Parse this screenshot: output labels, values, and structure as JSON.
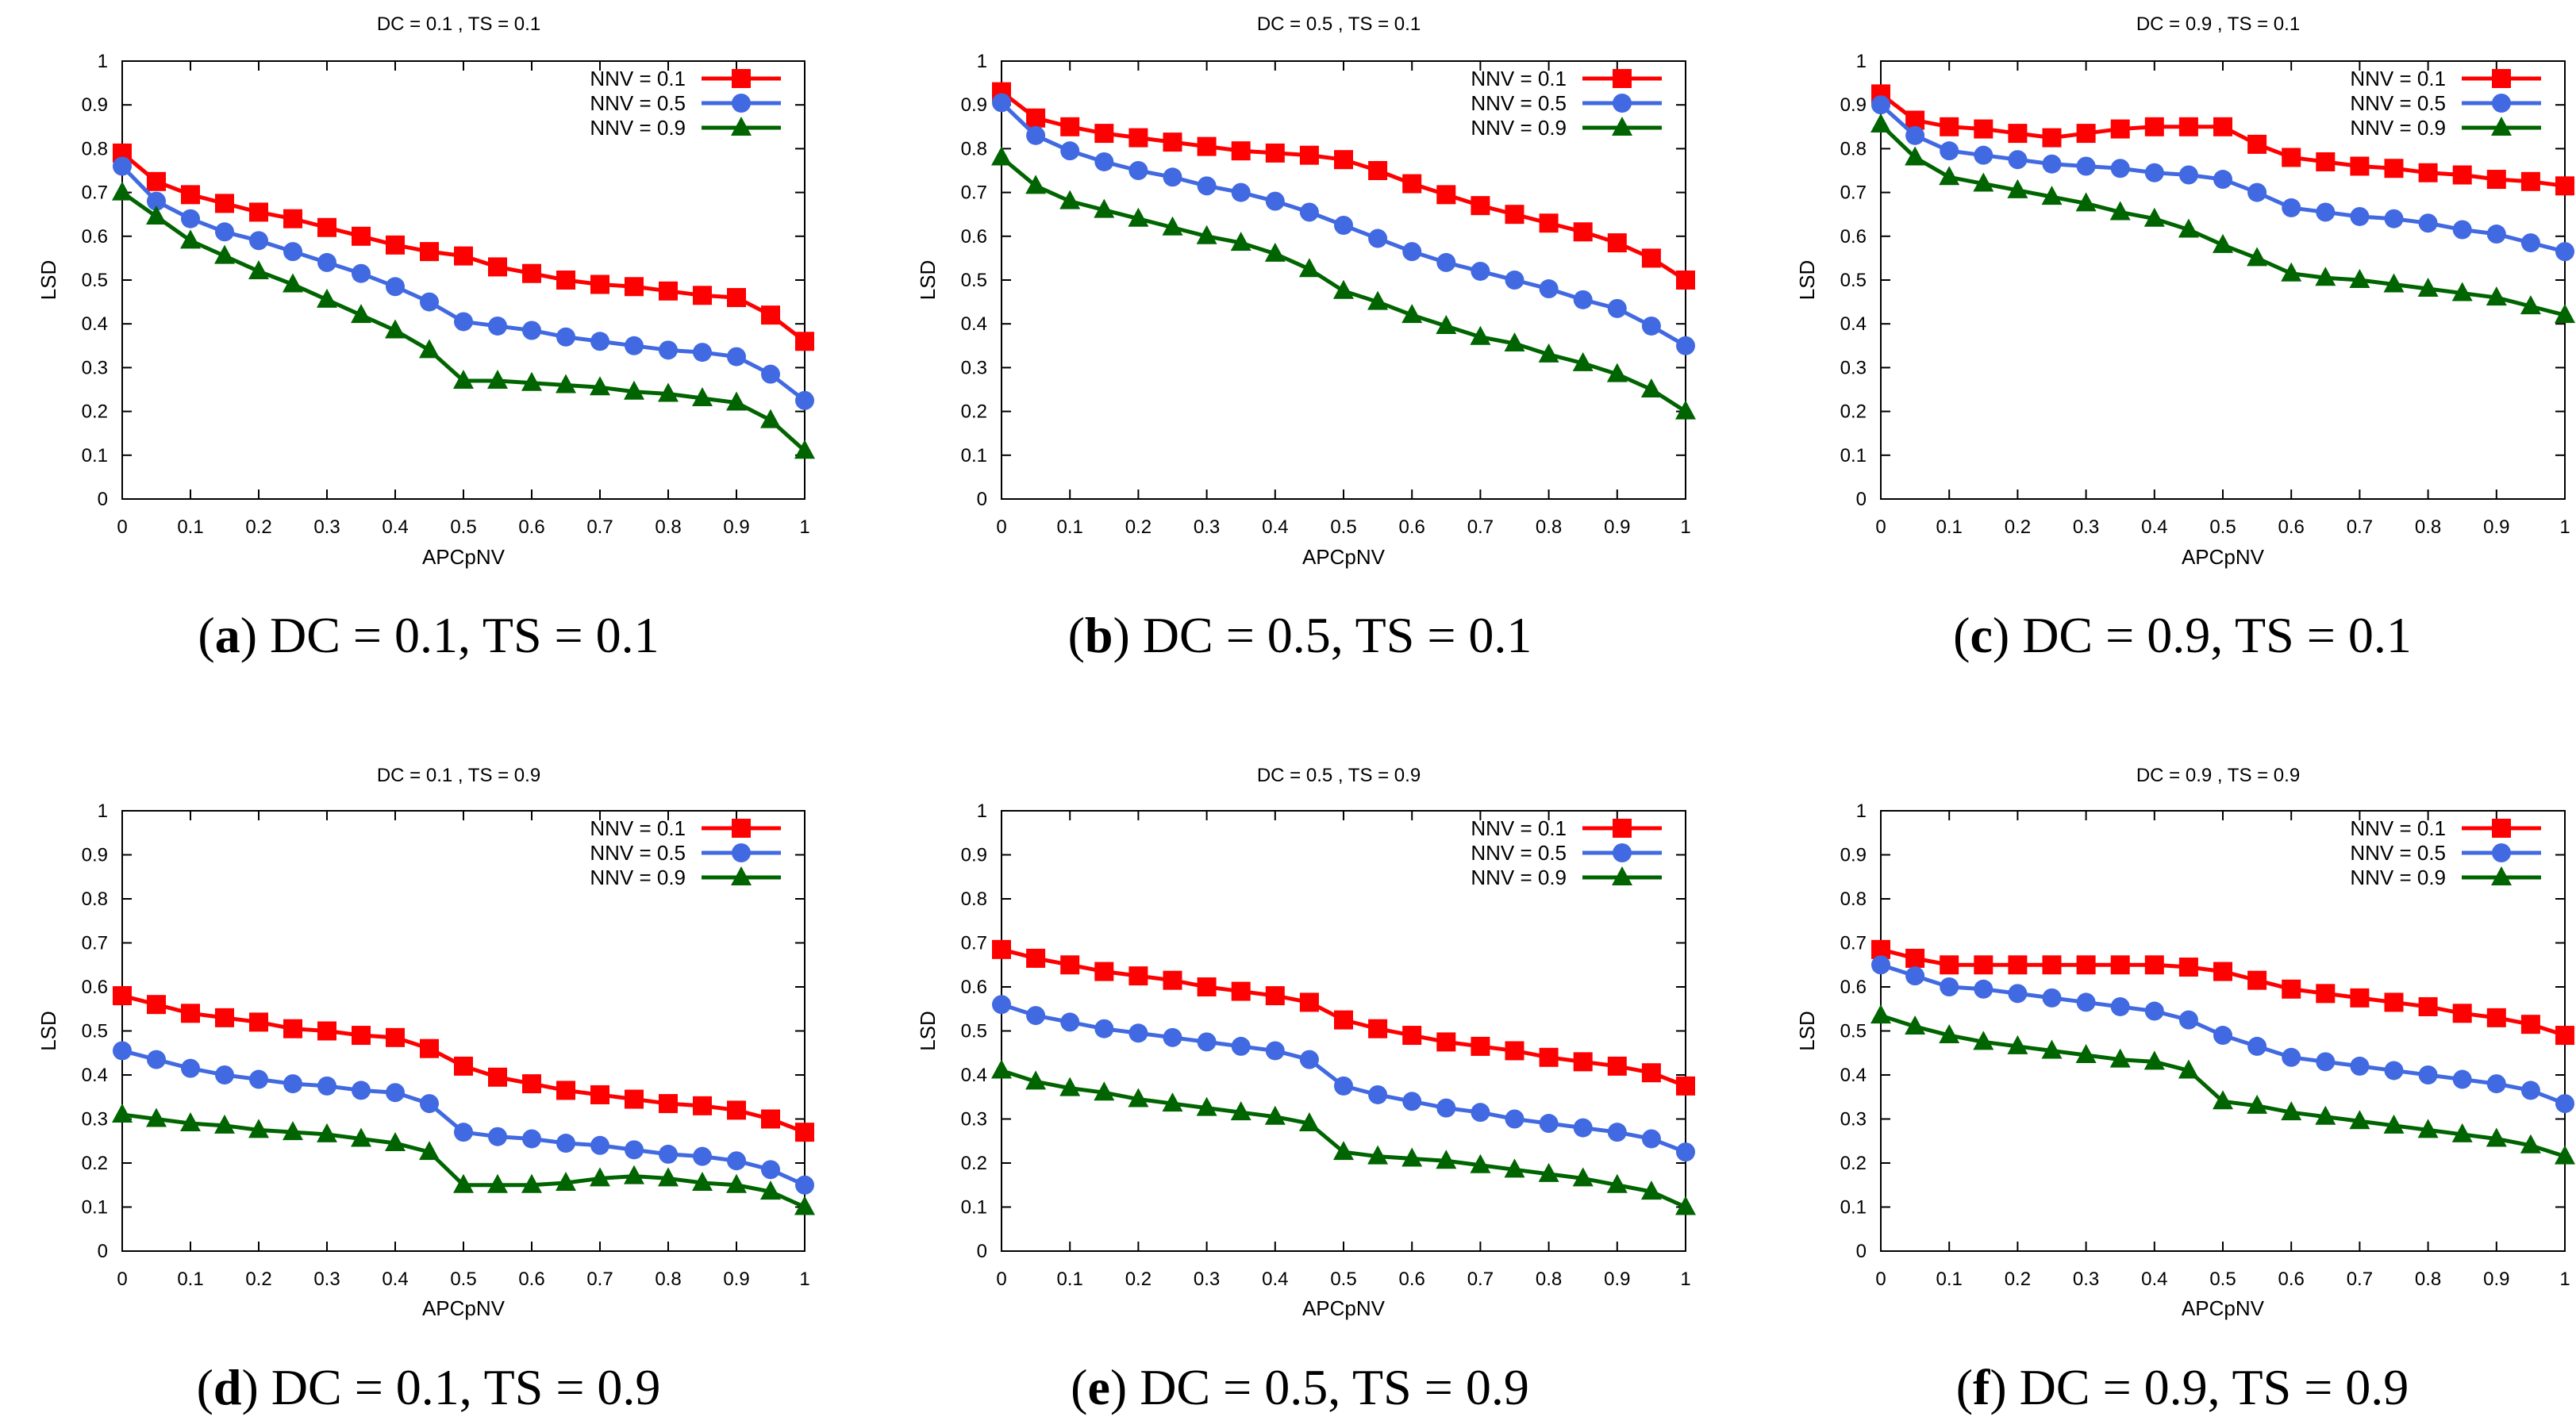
{
  "chart_data": [
    {
      "id": "a",
      "type": "line",
      "title": "DC = 0.1 , TS = 0.1",
      "caption_letter": "a",
      "caption_text": " DC = 0.1, TS = 0.1",
      "xlabel": "APCpNV",
      "ylabel": "LSD",
      "xlim": [
        0,
        1
      ],
      "ylim": [
        0,
        1
      ],
      "x_ticks": [
        "0",
        "0.1",
        "0.2",
        "0.3",
        "0.4",
        "0.5",
        "0.6",
        "0.7",
        "0.8",
        "0.9",
        "1"
      ],
      "y_ticks": [
        "0",
        "0.1",
        "0.2",
        "0.3",
        "0.4",
        "0.5",
        "0.6",
        "0.7",
        "0.8",
        "0.9",
        "1"
      ],
      "x": [
        0,
        0.05,
        0.1,
        0.15,
        0.2,
        0.25,
        0.3,
        0.35,
        0.4,
        0.45,
        0.5,
        0.55,
        0.6,
        0.65,
        0.7,
        0.75,
        0.8,
        0.85,
        0.9,
        0.95,
        1
      ],
      "legend_position": "top-right",
      "grid": false,
      "series": [
        {
          "name": "NNV = 0.1",
          "color": "#ff0000",
          "marker": "square",
          "values": [
            0.79,
            0.725,
            0.695,
            0.675,
            0.655,
            0.64,
            0.62,
            0.6,
            0.58,
            0.565,
            0.555,
            0.53,
            0.515,
            0.5,
            0.49,
            0.485,
            0.475,
            0.465,
            0.46,
            0.42,
            0.36
          ]
        },
        {
          "name": "NNV = 0.5",
          "color": "#4169e1",
          "marker": "circle",
          "values": [
            0.76,
            0.68,
            0.64,
            0.61,
            0.59,
            0.565,
            0.54,
            0.515,
            0.485,
            0.45,
            0.405,
            0.395,
            0.385,
            0.37,
            0.36,
            0.35,
            0.34,
            0.335,
            0.325,
            0.285,
            0.225
          ]
        },
        {
          "name": "NNV = 0.9",
          "color": "#006400",
          "marker": "triangle",
          "values": [
            0.7,
            0.645,
            0.59,
            0.555,
            0.52,
            0.49,
            0.455,
            0.42,
            0.385,
            0.34,
            0.27,
            0.27,
            0.265,
            0.26,
            0.255,
            0.245,
            0.24,
            0.23,
            0.22,
            0.18,
            0.11
          ]
        }
      ]
    },
    {
      "id": "b",
      "type": "line",
      "title": "DC = 0.5 , TS = 0.1",
      "caption_letter": "b",
      "caption_text": " DC = 0.5, TS = 0.1",
      "xlabel": "APCpNV",
      "ylabel": "LSD",
      "xlim": [
        0,
        1
      ],
      "ylim": [
        0,
        1
      ],
      "x_ticks": [
        "0",
        "0.1",
        "0.2",
        "0.3",
        "0.4",
        "0.5",
        "0.6",
        "0.7",
        "0.8",
        "0.9",
        "1"
      ],
      "y_ticks": [
        "0",
        "0.1",
        "0.2",
        "0.3",
        "0.4",
        "0.5",
        "0.6",
        "0.7",
        "0.8",
        "0.9",
        "1"
      ],
      "x": [
        0,
        0.05,
        0.1,
        0.15,
        0.2,
        0.25,
        0.3,
        0.35,
        0.4,
        0.45,
        0.5,
        0.55,
        0.6,
        0.65,
        0.7,
        0.75,
        0.8,
        0.85,
        0.9,
        0.95,
        1
      ],
      "legend_position": "top-right",
      "grid": false,
      "series": [
        {
          "name": "NNV = 0.1",
          "color": "#ff0000",
          "marker": "square",
          "values": [
            0.93,
            0.87,
            0.85,
            0.835,
            0.825,
            0.815,
            0.805,
            0.795,
            0.79,
            0.785,
            0.775,
            0.75,
            0.72,
            0.695,
            0.67,
            0.65,
            0.63,
            0.61,
            0.585,
            0.55,
            0.5
          ]
        },
        {
          "name": "NNV = 0.5",
          "color": "#4169e1",
          "marker": "circle",
          "values": [
            0.905,
            0.83,
            0.795,
            0.77,
            0.75,
            0.735,
            0.715,
            0.7,
            0.68,
            0.655,
            0.625,
            0.595,
            0.565,
            0.54,
            0.52,
            0.5,
            0.48,
            0.455,
            0.435,
            0.395,
            0.35
          ]
        },
        {
          "name": "NNV = 0.9",
          "color": "#006400",
          "marker": "triangle",
          "values": [
            0.78,
            0.715,
            0.68,
            0.66,
            0.64,
            0.62,
            0.6,
            0.585,
            0.56,
            0.525,
            0.475,
            0.45,
            0.42,
            0.395,
            0.37,
            0.355,
            0.33,
            0.31,
            0.285,
            0.25,
            0.2
          ]
        }
      ]
    },
    {
      "id": "c",
      "type": "line",
      "title": "DC = 0.9 , TS = 0.1",
      "caption_letter": "c",
      "caption_text": " DC = 0.9, TS = 0.1",
      "xlabel": "APCpNV",
      "ylabel": "LSD",
      "xlim": [
        0,
        1
      ],
      "ylim": [
        0,
        1
      ],
      "x_ticks": [
        "0",
        "0.1",
        "0.2",
        "0.3",
        "0.4",
        "0.5",
        "0.6",
        "0.7",
        "0.8",
        "0.9",
        "1"
      ],
      "y_ticks": [
        "0",
        "0.1",
        "0.2",
        "0.3",
        "0.4",
        "0.5",
        "0.6",
        "0.7",
        "0.8",
        "0.9",
        "1"
      ],
      "x": [
        0,
        0.05,
        0.1,
        0.15,
        0.2,
        0.25,
        0.3,
        0.35,
        0.4,
        0.45,
        0.5,
        0.55,
        0.6,
        0.65,
        0.7,
        0.75,
        0.8,
        0.85,
        0.9,
        0.95,
        1
      ],
      "legend_position": "top-right",
      "grid": false,
      "series": [
        {
          "name": "NNV = 0.1",
          "color": "#ff0000",
          "marker": "square",
          "values": [
            0.925,
            0.865,
            0.85,
            0.845,
            0.835,
            0.825,
            0.835,
            0.845,
            0.85,
            0.85,
            0.85,
            0.81,
            0.78,
            0.77,
            0.76,
            0.755,
            0.745,
            0.74,
            0.73,
            0.725,
            0.715
          ]
        },
        {
          "name": "NNV = 0.5",
          "color": "#4169e1",
          "marker": "circle",
          "values": [
            0.9,
            0.83,
            0.795,
            0.785,
            0.775,
            0.765,
            0.76,
            0.755,
            0.745,
            0.74,
            0.73,
            0.7,
            0.665,
            0.655,
            0.645,
            0.64,
            0.63,
            0.615,
            0.605,
            0.585,
            0.565
          ]
        },
        {
          "name": "NNV = 0.9",
          "color": "#006400",
          "marker": "triangle",
          "values": [
            0.855,
            0.78,
            0.735,
            0.72,
            0.705,
            0.69,
            0.675,
            0.655,
            0.64,
            0.615,
            0.58,
            0.55,
            0.515,
            0.505,
            0.5,
            0.49,
            0.48,
            0.47,
            0.46,
            0.44,
            0.42
          ]
        }
      ]
    },
    {
      "id": "d",
      "type": "line",
      "title": "DC = 0.1 , TS = 0.9",
      "caption_letter": "d",
      "caption_text": " DC = 0.1, TS = 0.9",
      "xlabel": "APCpNV",
      "ylabel": "LSD",
      "xlim": [
        0,
        1
      ],
      "ylim": [
        0,
        1
      ],
      "x_ticks": [
        "0",
        "0.1",
        "0.2",
        "0.3",
        "0.4",
        "0.5",
        "0.6",
        "0.7",
        "0.8",
        "0.9",
        "1"
      ],
      "y_ticks": [
        "0",
        "0.1",
        "0.2",
        "0.3",
        "0.4",
        "0.5",
        "0.6",
        "0.7",
        "0.8",
        "0.9",
        "1"
      ],
      "x": [
        0,
        0.05,
        0.1,
        0.15,
        0.2,
        0.25,
        0.3,
        0.35,
        0.4,
        0.45,
        0.5,
        0.55,
        0.6,
        0.65,
        0.7,
        0.75,
        0.8,
        0.85,
        0.9,
        0.95,
        1
      ],
      "legend_position": "top-right",
      "grid": false,
      "series": [
        {
          "name": "NNV = 0.1",
          "color": "#ff0000",
          "marker": "square",
          "values": [
            0.58,
            0.56,
            0.54,
            0.53,
            0.52,
            0.505,
            0.5,
            0.49,
            0.485,
            0.46,
            0.42,
            0.395,
            0.38,
            0.365,
            0.355,
            0.345,
            0.335,
            0.33,
            0.32,
            0.3,
            0.27
          ]
        },
        {
          "name": "NNV = 0.5",
          "color": "#4169e1",
          "marker": "circle",
          "values": [
            0.455,
            0.435,
            0.415,
            0.4,
            0.39,
            0.38,
            0.375,
            0.365,
            0.36,
            0.335,
            0.27,
            0.26,
            0.255,
            0.245,
            0.24,
            0.23,
            0.22,
            0.215,
            0.205,
            0.185,
            0.15
          ]
        },
        {
          "name": "NNV = 0.9",
          "color": "#006400",
          "marker": "triangle",
          "values": [
            0.31,
            0.3,
            0.29,
            0.285,
            0.275,
            0.27,
            0.265,
            0.255,
            0.245,
            0.225,
            0.15,
            0.15,
            0.15,
            0.155,
            0.165,
            0.17,
            0.165,
            0.155,
            0.15,
            0.135,
            0.1
          ]
        }
      ]
    },
    {
      "id": "e",
      "type": "line",
      "title": "DC = 0.5 , TS = 0.9",
      "caption_letter": "e",
      "caption_text": " DC = 0.5, TS = 0.9",
      "xlabel": "APCpNV",
      "ylabel": "LSD",
      "xlim": [
        0,
        1
      ],
      "ylim": [
        0,
        1
      ],
      "x_ticks": [
        "0",
        "0.1",
        "0.2",
        "0.3",
        "0.4",
        "0.5",
        "0.6",
        "0.7",
        "0.8",
        "0.9",
        "1"
      ],
      "y_ticks": [
        "0",
        "0.1",
        "0.2",
        "0.3",
        "0.4",
        "0.5",
        "0.6",
        "0.7",
        "0.8",
        "0.9",
        "1"
      ],
      "x": [
        0,
        0.05,
        0.1,
        0.15,
        0.2,
        0.25,
        0.3,
        0.35,
        0.4,
        0.45,
        0.5,
        0.55,
        0.6,
        0.65,
        0.7,
        0.75,
        0.8,
        0.85,
        0.9,
        0.95,
        1
      ],
      "legend_position": "top-right",
      "grid": false,
      "series": [
        {
          "name": "NNV = 0.1",
          "color": "#ff0000",
          "marker": "square",
          "values": [
            0.685,
            0.665,
            0.65,
            0.635,
            0.625,
            0.615,
            0.6,
            0.59,
            0.58,
            0.565,
            0.525,
            0.505,
            0.49,
            0.475,
            0.465,
            0.455,
            0.44,
            0.43,
            0.42,
            0.405,
            0.375
          ]
        },
        {
          "name": "NNV = 0.5",
          "color": "#4169e1",
          "marker": "circle",
          "values": [
            0.56,
            0.535,
            0.52,
            0.505,
            0.495,
            0.485,
            0.475,
            0.465,
            0.455,
            0.435,
            0.375,
            0.355,
            0.34,
            0.325,
            0.315,
            0.3,
            0.29,
            0.28,
            0.27,
            0.255,
            0.225
          ]
        },
        {
          "name": "NNV = 0.9",
          "color": "#006400",
          "marker": "triangle",
          "values": [
            0.41,
            0.385,
            0.37,
            0.36,
            0.345,
            0.335,
            0.325,
            0.315,
            0.305,
            0.29,
            0.225,
            0.215,
            0.21,
            0.205,
            0.195,
            0.185,
            0.175,
            0.165,
            0.15,
            0.135,
            0.1
          ]
        }
      ]
    },
    {
      "id": "f",
      "type": "line",
      "title": "DC = 0.9 , TS = 0.9",
      "caption_letter": "f",
      "caption_text": " DC = 0.9, TS = 0.9",
      "xlabel": "APCpNV",
      "ylabel": "LSD",
      "xlim": [
        0,
        1
      ],
      "ylim": [
        0,
        1
      ],
      "x_ticks": [
        "0",
        "0.1",
        "0.2",
        "0.3",
        "0.4",
        "0.5",
        "0.6",
        "0.7",
        "0.8",
        "0.9",
        "1"
      ],
      "y_ticks": [
        "0",
        "0.1",
        "0.2",
        "0.3",
        "0.4",
        "0.5",
        "0.6",
        "0.7",
        "0.8",
        "0.9",
        "1"
      ],
      "x": [
        0,
        0.05,
        0.1,
        0.15,
        0.2,
        0.25,
        0.3,
        0.35,
        0.4,
        0.45,
        0.5,
        0.55,
        0.6,
        0.65,
        0.7,
        0.75,
        0.8,
        0.85,
        0.9,
        0.95,
        1
      ],
      "legend_position": "top-right",
      "grid": false,
      "series": [
        {
          "name": "NNV = 0.1",
          "color": "#ff0000",
          "marker": "square",
          "values": [
            0.685,
            0.665,
            0.65,
            0.65,
            0.65,
            0.65,
            0.65,
            0.65,
            0.65,
            0.645,
            0.635,
            0.615,
            0.595,
            0.585,
            0.575,
            0.565,
            0.555,
            0.54,
            0.53,
            0.515,
            0.49
          ]
        },
        {
          "name": "NNV = 0.5",
          "color": "#4169e1",
          "marker": "circle",
          "values": [
            0.65,
            0.625,
            0.6,
            0.595,
            0.585,
            0.575,
            0.565,
            0.555,
            0.545,
            0.525,
            0.49,
            0.465,
            0.44,
            0.43,
            0.42,
            0.41,
            0.4,
            0.39,
            0.38,
            0.365,
            0.335
          ]
        },
        {
          "name": "NNV = 0.9",
          "color": "#006400",
          "marker": "triangle",
          "values": [
            0.535,
            0.51,
            0.49,
            0.475,
            0.465,
            0.455,
            0.445,
            0.435,
            0.43,
            0.41,
            0.34,
            0.33,
            0.315,
            0.305,
            0.295,
            0.285,
            0.275,
            0.265,
            0.255,
            0.24,
            0.215
          ]
        }
      ]
    }
  ]
}
